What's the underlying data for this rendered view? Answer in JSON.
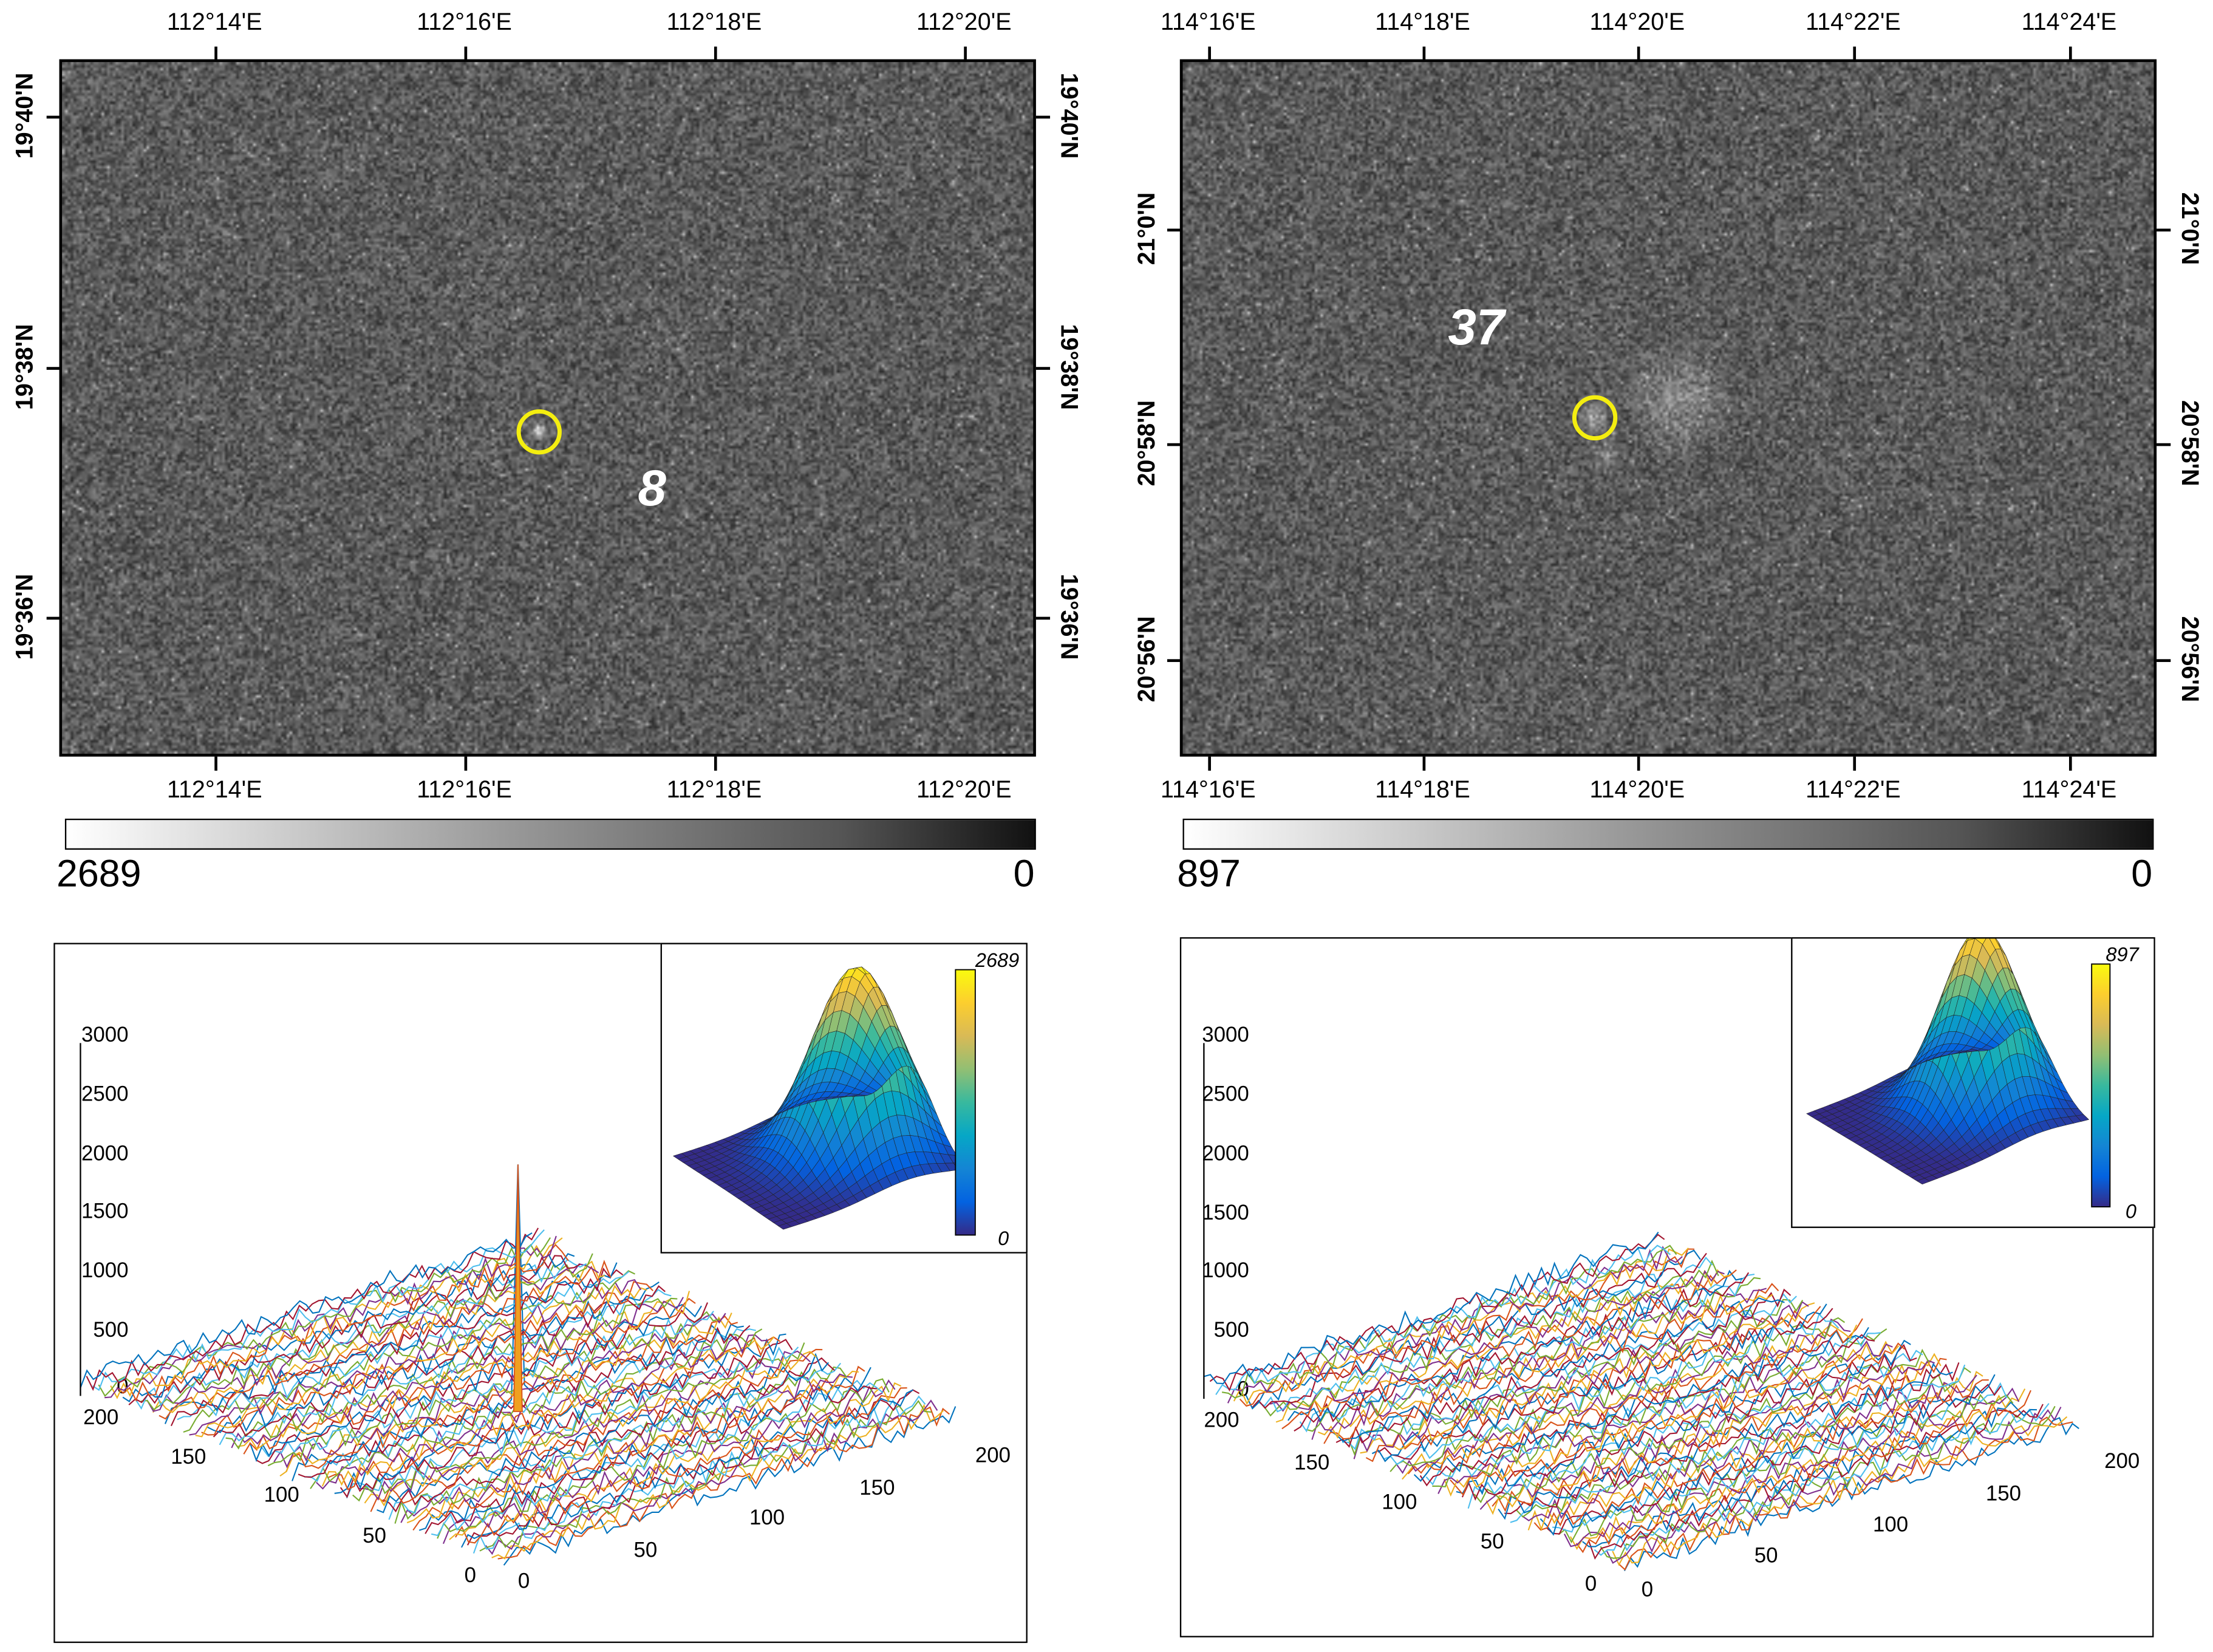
{
  "panels": [
    {
      "id": "left",
      "lon_ticks": [
        "112°14'E",
        "112°16'E",
        "112°18'E",
        "112°20'E"
      ],
      "lat_ticks": [
        "19°40'N",
        "19°38'N",
        "19°36'N"
      ],
      "target_label": "8",
      "colorbar": {
        "max_label": "2689",
        "min_label": "0"
      },
      "inset_colorbar": {
        "max_label": "2689",
        "min_label": "0"
      },
      "peak_value": 2100
    },
    {
      "id": "right",
      "lon_ticks": [
        "114°16'E",
        "114°18'E",
        "114°20'E",
        "114°22'E",
        "114°24'E"
      ],
      "lat_ticks": [
        "21°0'N",
        "20°58'N",
        "20°56'N"
      ],
      "target_label": "37",
      "colorbar": {
        "max_label": "897",
        "min_label": "0"
      },
      "inset_colorbar": {
        "max_label": "897",
        "min_label": "0"
      },
      "peak_value": 0
    }
  ],
  "chart_data": [
    {
      "type": "surface",
      "title": "",
      "z_ticks": [
        "3000",
        "2500",
        "2000",
        "1500",
        "1000",
        "500",
        "0"
      ],
      "x_ticks": [
        "0",
        "50",
        "100",
        "150",
        "200"
      ],
      "y_ticks": [
        "0",
        "50",
        "100",
        "150",
        "200"
      ],
      "zlim": [
        0,
        3000
      ],
      "xlim": [
        0,
        200
      ],
      "ylim": [
        0,
        200
      ],
      "background_level": 150,
      "peak": {
        "x": 100,
        "y": 100,
        "z": 2100
      },
      "inset": {
        "type": "surface",
        "zlim": [
          0,
          2689
        ],
        "colorbar_max": "2689",
        "colorbar_min": "0"
      }
    },
    {
      "type": "surface",
      "title": "",
      "z_ticks": [
        "3000",
        "2500",
        "2000",
        "1500",
        "1000",
        "500",
        "0"
      ],
      "x_ticks": [
        "0",
        "50",
        "100",
        "150",
        "200"
      ],
      "y_ticks": [
        "0",
        "50",
        "100",
        "150",
        "200"
      ],
      "zlim": [
        0,
        3000
      ],
      "xlim": [
        0,
        200
      ],
      "ylim": [
        0,
        200
      ],
      "background_level": 150,
      "peak": null,
      "inset": {
        "type": "surface",
        "zlim": [
          0,
          897
        ],
        "colorbar_max": "897",
        "colorbar_min": "0"
      }
    }
  ],
  "colors": {
    "circle": "#f4ee10",
    "parula": [
      "#352a87",
      "#0363e1",
      "#1485d4",
      "#06a7c6",
      "#38b99e",
      "#92bf73",
      "#d9ba56",
      "#fcce2e",
      "#f9fb0e"
    ],
    "mesh_lines": [
      "#0072bd",
      "#d95319",
      "#edb120",
      "#7e2f8e",
      "#77ac30",
      "#4dbeee",
      "#a2142f"
    ]
  }
}
